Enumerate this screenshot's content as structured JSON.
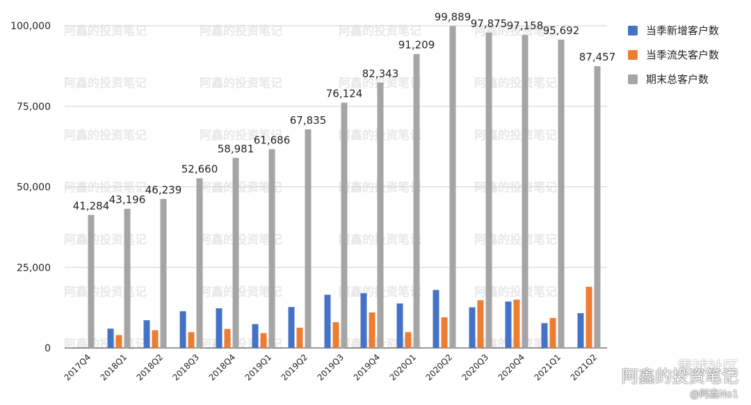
{
  "chart_data": {
    "type": "bar",
    "categories": [
      "2017Q4",
      "2018Q1",
      "2018Q2",
      "2018Q3",
      "2018Q4",
      "2019Q1",
      "2019Q2",
      "2019Q3",
      "2019Q4",
      "2020Q1",
      "2020Q2",
      "2020Q3",
      "2020Q4",
      "2021Q1",
      "2021Q2"
    ],
    "series": [
      {
        "name": "当季新增客户数",
        "color": "#4472c4",
        "values": [
          0,
          6000,
          8600,
          11400,
          12300,
          7400,
          12700,
          16500,
          17000,
          13800,
          18000,
          12600,
          14400,
          7700,
          10800
        ]
      },
      {
        "name": "当季流失客户数",
        "color": "#ed7d31",
        "values": [
          0,
          4000,
          5500,
          4900,
          5900,
          4600,
          6300,
          8000,
          11000,
          4900,
          9500,
          14800,
          15000,
          9300,
          19000
        ]
      },
      {
        "name": "期末总客户数",
        "color": "#a5a5a5",
        "values": [
          41284,
          43196,
          46239,
          52660,
          58981,
          61686,
          67835,
          76124,
          82343,
          91209,
          99889,
          97875,
          97158,
          95692,
          87457
        ]
      }
    ],
    "data_labels": [
      "41,284",
      "43,196",
      "46,239",
      "52,660",
      "58,981",
      "61,686",
      "67,835",
      "76,124",
      "82,343",
      "91,209",
      "99,889",
      "97,875",
      "97,158",
      "95,692",
      "87,457"
    ],
    "y_ticks": [
      "0",
      "25,000",
      "50,000",
      "75,000",
      "100,000"
    ],
    "ylim": [
      0,
      100000
    ],
    "grid": true,
    "legend_position": "top-right"
  },
  "legend": [
    {
      "label": "当季新增客户数",
      "color": "#4472c4"
    },
    {
      "label": "当季流失客户数",
      "color": "#ed7d31"
    },
    {
      "label": "期末总客户数",
      "color": "#a5a5a5"
    }
  ],
  "watermark": {
    "text": "阿鑫的投资笔记",
    "footer_main": "阿鑫的投资笔记",
    "footer_handle": "@阿鑫No1",
    "platform": "雪球社区"
  }
}
